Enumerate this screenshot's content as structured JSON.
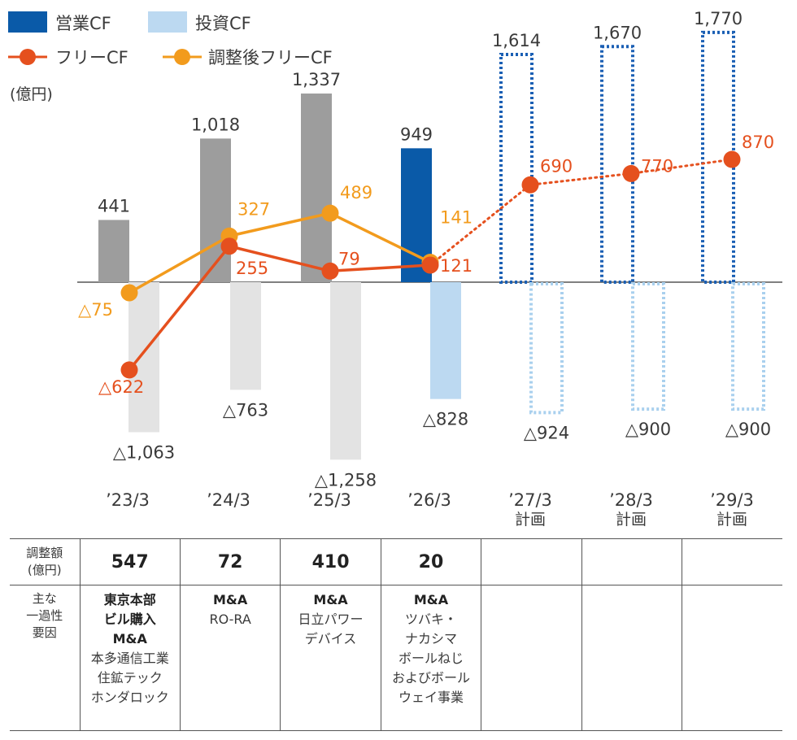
{
  "legend": {
    "operating_cf": "営業CF",
    "investing_cf": "投資CF",
    "free_cf": "フリーCF",
    "adjusted_free_cf": "調整後フリーCF"
  },
  "y_unit": "(億円)",
  "colors": {
    "operating_actual_past": "#9d9d9d",
    "operating_actual_latest": "#0a5aa8",
    "operating_plan": "#1a5fb4",
    "investing_actual_past": "#e3e3e3",
    "investing_actual_latest": "#bcd9f1",
    "investing_plan": "#a9d0ee",
    "free_cf": "#e5501e",
    "adjusted_free_cf": "#f29b1d",
    "text": "#3a3a3a"
  },
  "chart_data": {
    "type": "bar",
    "categories": [
      [
        "’23/3"
      ],
      [
        "’24/3"
      ],
      [
        "’25/3"
      ],
      [
        "’26/3"
      ],
      [
        "’27/3",
        "計画"
      ],
      [
        "’28/3",
        "計画"
      ],
      [
        "’29/3",
        "計画"
      ]
    ],
    "zero_baseline": true,
    "series": [
      {
        "name": "営業CF",
        "kind": "bar",
        "values": [
          441,
          1018,
          1337,
          949,
          1614,
          1670,
          1770
        ],
        "labels": [
          "441",
          "1,018",
          "1,337",
          "949",
          "1,614",
          "1,670",
          "1,770"
        ],
        "plan": [
          false,
          false,
          false,
          false,
          true,
          true,
          true
        ]
      },
      {
        "name": "投資CF",
        "kind": "bar",
        "values": [
          -1063,
          -763,
          -1258,
          -828,
          -924,
          -900,
          -900
        ],
        "labels": [
          "△1,063",
          "△763",
          "△1,258",
          "△828",
          "△924",
          "△900",
          "△900"
        ],
        "plan": [
          false,
          false,
          false,
          false,
          true,
          true,
          true
        ]
      },
      {
        "name": "フリーCF",
        "kind": "line",
        "values": [
          -622,
          255,
          79,
          121,
          690,
          770,
          870
        ],
        "labels": [
          "△622",
          "255",
          "79",
          "121",
          "690",
          "770",
          "870"
        ],
        "plan": [
          false,
          false,
          false,
          false,
          true,
          true,
          true
        ]
      },
      {
        "name": "調整後フリーCF",
        "kind": "line",
        "values": [
          -75,
          327,
          489,
          141,
          null,
          null,
          null
        ],
        "labels": [
          "△75",
          "327",
          "489",
          "141",
          "",
          "",
          ""
        ],
        "plan": [
          false,
          false,
          false,
          false,
          false,
          false,
          false
        ]
      }
    ]
  },
  "table": {
    "adjustment_header": [
      "調整額",
      "(億円)"
    ],
    "adjustments": [
      "547",
      "72",
      "410",
      "20",
      "",
      "",
      ""
    ],
    "factors_header": [
      "主な",
      "一過性",
      "要因"
    ],
    "factors": [
      [
        {
          "text": "東京本部",
          "bold": true
        },
        {
          "text": "ビル購入",
          "bold": true
        },
        {
          "text": "M&A",
          "bold": true
        },
        {
          "text": "本多通信工業",
          "bold": false
        },
        {
          "text": "住鉱テック",
          "bold": false
        },
        {
          "text": "ホンダロック",
          "bold": false
        }
      ],
      [
        {
          "text": "M&A",
          "bold": true
        },
        {
          "text": "RO-RA",
          "bold": false
        }
      ],
      [
        {
          "text": "M&A",
          "bold": true
        },
        {
          "text": "日立パワー",
          "bold": false
        },
        {
          "text": "デバイス",
          "bold": false
        }
      ],
      [
        {
          "text": "M&A",
          "bold": true
        },
        {
          "text": "ツバキ・",
          "bold": false
        },
        {
          "text": "ナカシマ",
          "bold": false
        },
        {
          "text": "ボールねじ",
          "bold": false
        },
        {
          "text": "およびボール",
          "bold": false
        },
        {
          "text": "ウェイ事業",
          "bold": false
        }
      ],
      [],
      [],
      []
    ]
  }
}
